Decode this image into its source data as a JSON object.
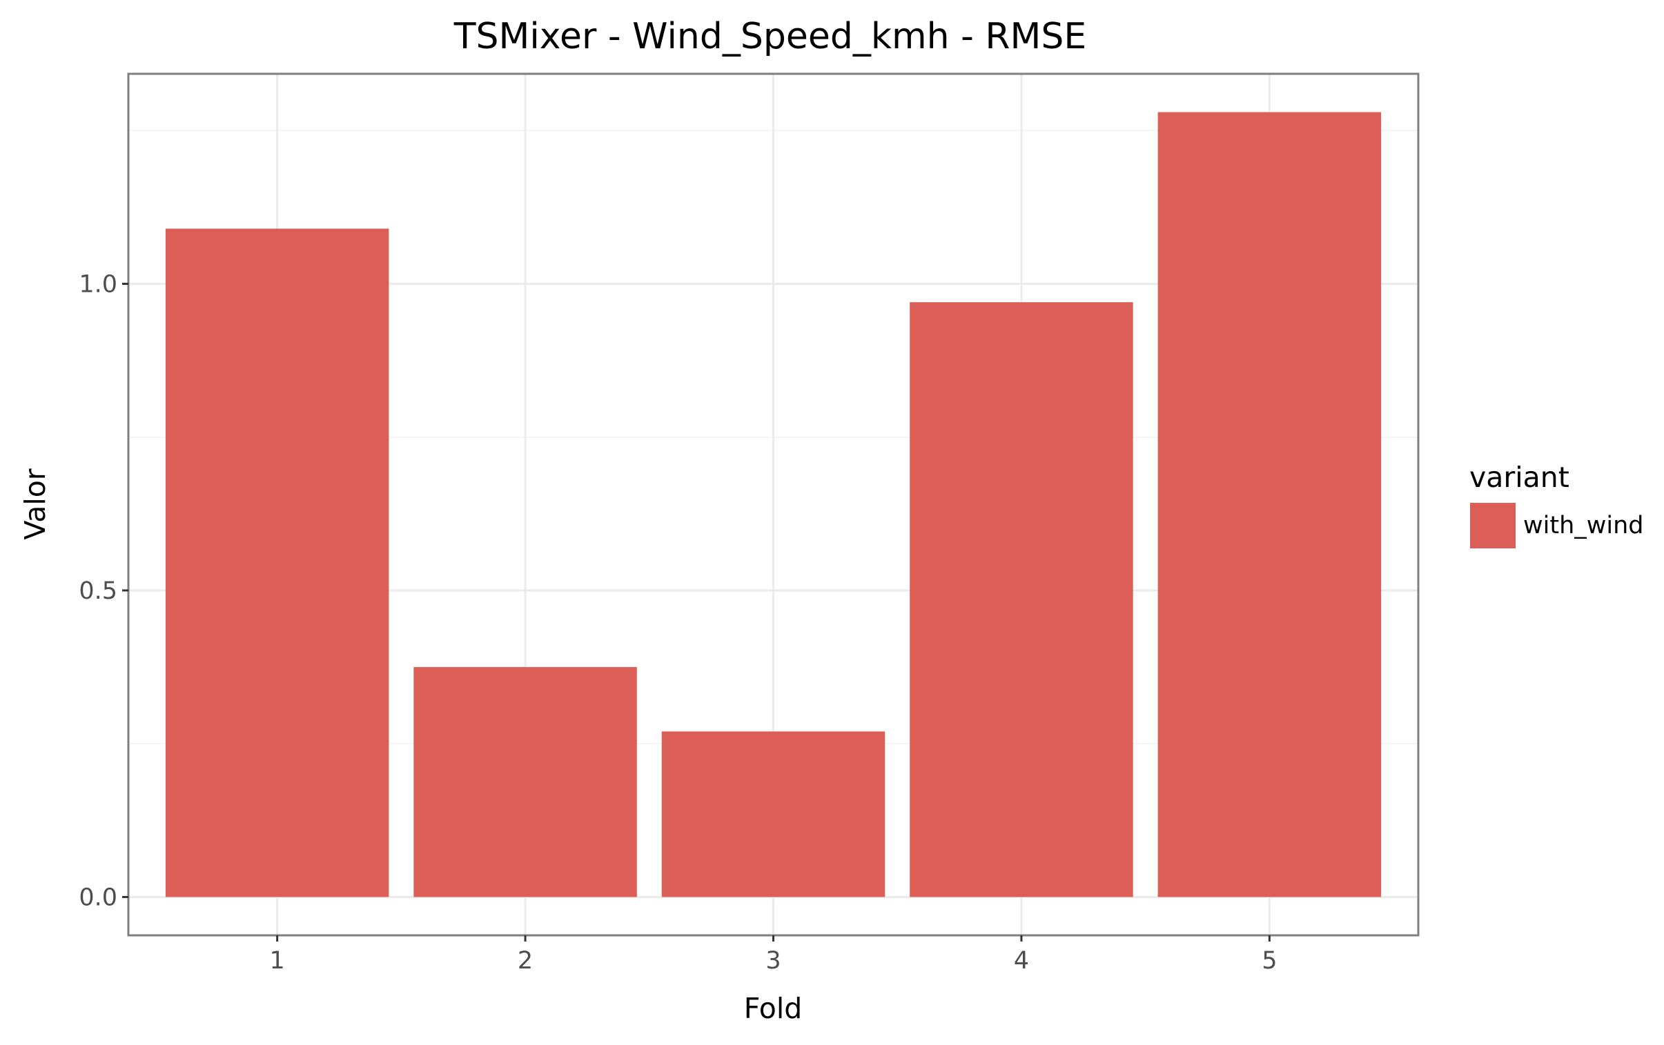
{
  "chart_data": {
    "type": "bar",
    "title": "TSMixer - Wind_Speed_kmh - RMSE",
    "xlabel": "Fold",
    "ylabel": "Valor",
    "categories": [
      "1",
      "2",
      "3",
      "4",
      "5"
    ],
    "series": [
      {
        "name": "with_wind",
        "values": [
          1.09,
          0.375,
          0.27,
          0.97,
          1.28
        ],
        "color": "#DC5F57"
      }
    ],
    "yticks": [
      0.0,
      0.5,
      1.0
    ],
    "ytick_labels": [
      "0.0",
      "0.5",
      "1.0"
    ],
    "ylim": [
      -0.0625,
      1.3425
    ],
    "grid": true,
    "legend": {
      "title": "variant",
      "placement": "right"
    }
  }
}
